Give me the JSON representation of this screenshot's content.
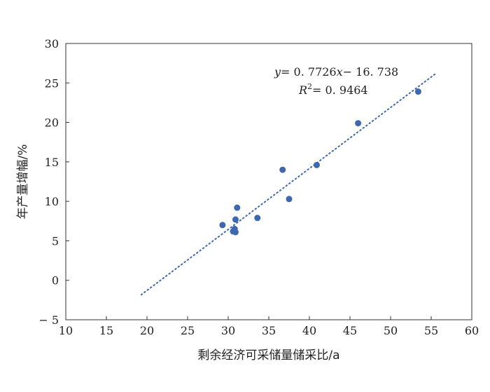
{
  "chart_data": {
    "type": "scatter",
    "xlabel": "剩余经济可采储量储采比/a",
    "ylabel": "年产量增幅/%",
    "xlim": [
      10,
      60
    ],
    "ylim": [
      -5,
      30
    ],
    "xticks": [
      10,
      15,
      20,
      25,
      30,
      35,
      40,
      45,
      50,
      55,
      60
    ],
    "yticks": [
      -5,
      0,
      5,
      10,
      15,
      20,
      25,
      30
    ],
    "xtick_labels": [
      "10",
      "15",
      "20",
      "25",
      "30",
      "35",
      "40",
      "45",
      "50",
      "55",
      "60"
    ],
    "ytick_labels": [
      "− 5",
      "0",
      "5",
      "10",
      "15",
      "20",
      "25",
      "30"
    ],
    "grid": false,
    "point_color": "#3d68b0",
    "trendline_color": "#3d68b0",
    "points": [
      {
        "x": 29.3,
        "y": 7.0
      },
      {
        "x": 30.6,
        "y": 6.2
      },
      {
        "x": 30.8,
        "y": 6.5
      },
      {
        "x": 30.9,
        "y": 6.1
      },
      {
        "x": 30.9,
        "y": 7.7
      },
      {
        "x": 31.1,
        "y": 9.2
      },
      {
        "x": 33.6,
        "y": 7.9
      },
      {
        "x": 36.7,
        "y": 14.0
      },
      {
        "x": 37.5,
        "y": 10.3
      },
      {
        "x": 40.9,
        "y": 14.6
      },
      {
        "x": 46.0,
        "y": 19.9
      },
      {
        "x": 53.4,
        "y": 23.9
      }
    ],
    "trendline": {
      "slope": 0.7726,
      "intercept": -16.738,
      "x_range": [
        19.3,
        55.6
      ],
      "style": "dotted"
    },
    "annotation": {
      "eq_y": "y",
      "eq_rest": "= 0. 7726",
      "eq_x": "x",
      "eq_tail": "− 16. 738",
      "r_label": "R",
      "r_sup": "2",
      "r_value": "= 0. 9464"
    }
  }
}
